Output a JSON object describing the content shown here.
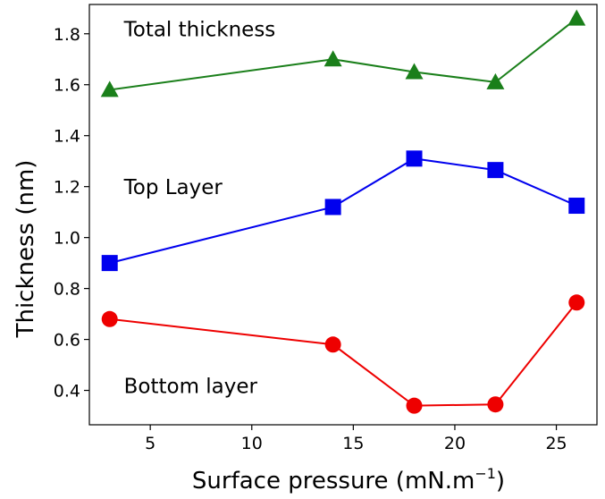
{
  "chart_data": {
    "type": "line",
    "xlabel": "Surface pressure (mN.m",
    "xlabel_sup": "−1",
    "xlabel_close": ")",
    "ylabel": "Thickness (nm)",
    "xlim": [
      2,
      27
    ],
    "ylim": [
      0.265,
      1.915
    ],
    "xticks": [
      5,
      10,
      15,
      20,
      25
    ],
    "yticks": [
      0.4,
      0.6,
      0.8,
      1.0,
      1.2,
      1.4,
      1.6,
      1.8
    ],
    "ytick_labels": [
      "0.4",
      "0.6",
      "0.8",
      "1.0",
      "1.2",
      "1.4",
      "1.6",
      "1.8"
    ],
    "grid": false,
    "x": [
      3,
      14,
      18,
      22,
      26
    ],
    "series": [
      {
        "values": [
          1.58,
          1.7,
          1.65,
          1.61,
          1.86
        ],
        "color": "#1a7f1a",
        "marker": "triangle"
      },
      {
        "values": [
          0.9,
          1.12,
          1.31,
          1.265,
          1.125
        ],
        "color": "#0000ee",
        "marker": "square"
      },
      {
        "values": [
          0.68,
          0.58,
          0.34,
          0.345,
          0.745
        ],
        "color": "#ee0000",
        "marker": "circle"
      }
    ],
    "annotations": [
      {
        "text": "Total thickness",
        "x": 3.7,
        "y": 1.79
      },
      {
        "text": "Top Layer",
        "x": 3.7,
        "y": 1.17
      },
      {
        "text": "Bottom layer",
        "x": 3.7,
        "y": 0.39
      }
    ]
  }
}
